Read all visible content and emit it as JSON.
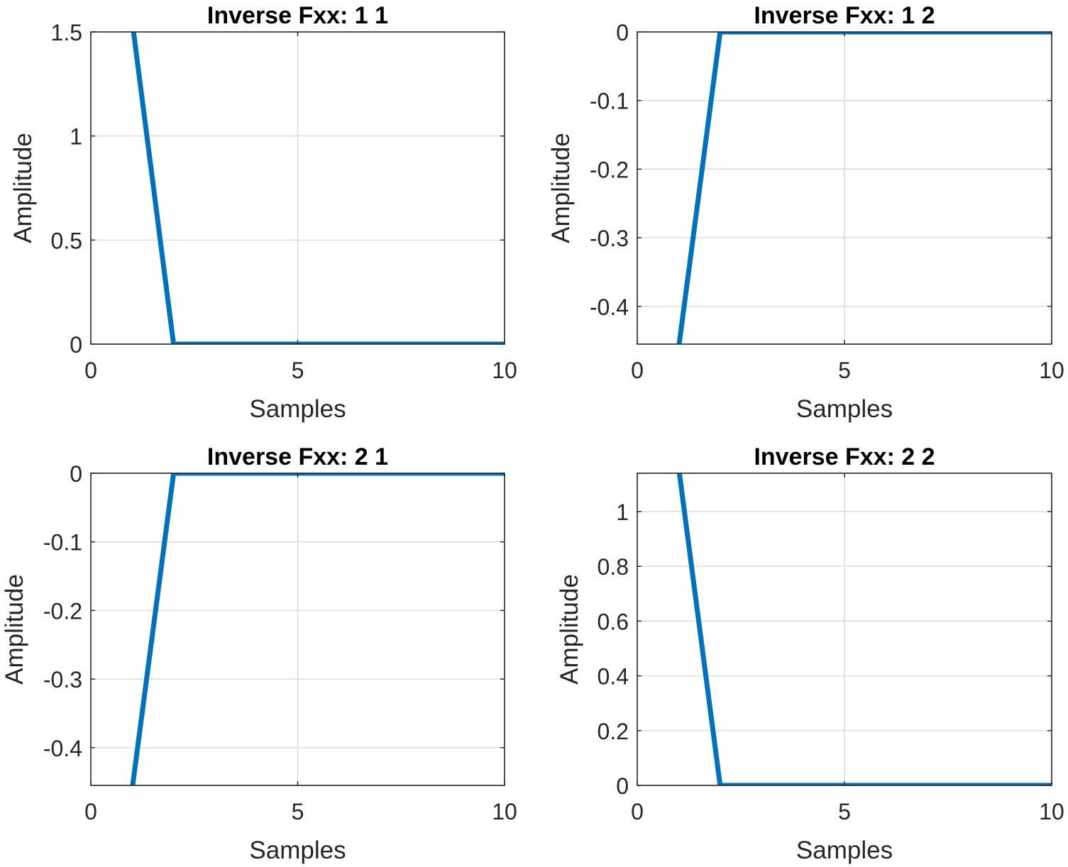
{
  "figure": {
    "line_color": "#0072BD",
    "grid_color": "#dcdcdc",
    "axis_color": "#262626"
  },
  "chart_data": [
    {
      "type": "line",
      "title": "Inverse Fxx: 1 1",
      "xlabel": "Samples",
      "ylabel": "Amplitude",
      "xlim": [
        0,
        10
      ],
      "ylim": [
        0,
        1.5
      ],
      "xticks": [
        0,
        5,
        10
      ],
      "yticks": [
        0,
        0.5,
        1,
        1.5
      ],
      "xtick_labels": [
        "0",
        "5",
        "10"
      ],
      "ytick_labels": [
        "0",
        "0.5",
        "1",
        "1.5"
      ],
      "grid": true,
      "x": [
        1,
        2,
        3,
        4,
        5,
        6,
        7,
        8,
        9,
        10
      ],
      "y": [
        1.55,
        0,
        0,
        0,
        0,
        0,
        0,
        0,
        0,
        0
      ]
    },
    {
      "type": "line",
      "title": "Inverse Fxx: 1 2",
      "xlabel": "Samples",
      "ylabel": "Amplitude",
      "xlim": [
        0,
        10
      ],
      "ylim": [
        -0.455,
        0
      ],
      "xticks": [
        0,
        5,
        10
      ],
      "yticks": [
        -0.4,
        -0.3,
        -0.2,
        -0.1,
        0
      ],
      "xtick_labels": [
        "0",
        "5",
        "10"
      ],
      "ytick_labels": [
        "-0.4",
        "-0.3",
        "-0.2",
        "-0.1",
        "0"
      ],
      "grid": true,
      "x": [
        1,
        2,
        3,
        4,
        5,
        6,
        7,
        8,
        9,
        10
      ],
      "y": [
        -0.46,
        0,
        0,
        0,
        0,
        0,
        0,
        0,
        0,
        0
      ]
    },
    {
      "type": "line",
      "title": "Inverse Fxx: 2 1",
      "xlabel": "Samples",
      "ylabel": "Amplitude",
      "xlim": [
        0,
        10
      ],
      "ylim": [
        -0.455,
        0
      ],
      "xticks": [
        0,
        5,
        10
      ],
      "yticks": [
        -0.4,
        -0.3,
        -0.2,
        -0.1,
        0
      ],
      "xtick_labels": [
        "0",
        "5",
        "10"
      ],
      "ytick_labels": [
        "-0.4",
        "-0.3",
        "-0.2",
        "-0.1",
        "0"
      ],
      "grid": true,
      "x": [
        1,
        2,
        3,
        4,
        5,
        6,
        7,
        8,
        9,
        10
      ],
      "y": [
        -0.46,
        0,
        0,
        0,
        0,
        0,
        0,
        0,
        0,
        0
      ]
    },
    {
      "type": "line",
      "title": "Inverse Fxx: 2 2",
      "xlabel": "Samples",
      "ylabel": "Amplitude",
      "xlim": [
        0,
        10
      ],
      "ylim": [
        0,
        1.14
      ],
      "xticks": [
        0,
        5,
        10
      ],
      "yticks": [
        0,
        0.2,
        0.4,
        0.6,
        0.8,
        1
      ],
      "xtick_labels": [
        "0",
        "5",
        "10"
      ],
      "ytick_labels": [
        "0",
        "0.2",
        "0.4",
        "0.6",
        "0.8",
        "1"
      ],
      "grid": true,
      "x": [
        1,
        2,
        3,
        4,
        5,
        6,
        7,
        8,
        9,
        10
      ],
      "y": [
        1.16,
        0,
        0,
        0,
        0,
        0,
        0,
        0,
        0,
        0
      ]
    }
  ]
}
